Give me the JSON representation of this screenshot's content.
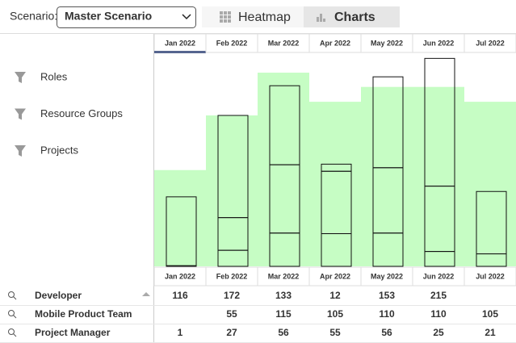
{
  "toolbar": {
    "scenario_label": "Scenario:",
    "scenario": "Master Scenario",
    "tabs": [
      "Heatmap",
      "Charts"
    ],
    "active_tab": 1
  },
  "filters": [
    "Roles",
    "Resource Groups",
    "Projects"
  ],
  "chart_data": {
    "type": "bar",
    "stacked": true,
    "categories": [
      "Jan 2022",
      "Feb 2022",
      "Mar 2022",
      "Apr 2022",
      "May 2022",
      "Jun 2022",
      "Jul 2022"
    ],
    "selected_category": 0,
    "capacity": {
      "color": "#c6fdc4",
      "values": [
        162,
        254,
        326,
        277,
        302,
        302,
        277
      ]
    },
    "series": [
      {
        "name": "Developer",
        "values": [
          116,
          172,
          133,
          12,
          153,
          215,
          null
        ]
      },
      {
        "name": "Mobile Product Team",
        "values": [
          null,
          55,
          115,
          105,
          110,
          110,
          105
        ]
      },
      {
        "name": "Project Manager",
        "values": [
          1,
          27,
          56,
          55,
          56,
          25,
          21
        ]
      }
    ],
    "stack_order": [
      2,
      1,
      0
    ],
    "ylim": [
      0,
      360
    ]
  }
}
